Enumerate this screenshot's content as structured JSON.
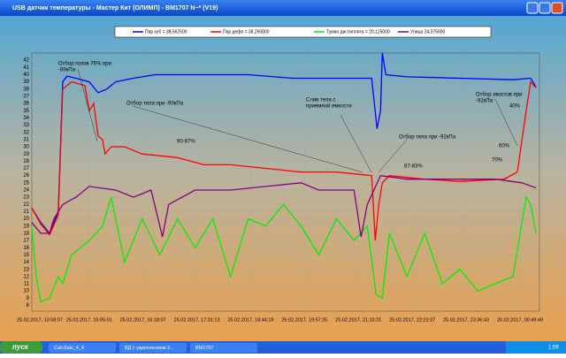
{
  "window": {
    "title": "USB датчик температуры - Мастер Кит (ОЛИМП) - BM1707 N~* (V19)"
  },
  "chart_data": {
    "type": "line",
    "xlim": [
      13.789,
      25.27
    ],
    "ylim": [
      7.2,
      43
    ],
    "xticks": [
      {
        "value": 13.969,
        "label": "25.02.2017, 13:58:07"
      },
      {
        "value": 15.084,
        "label": "25.02.2017, 15:05:01"
      },
      {
        "value": 16.302,
        "label": "25.02.2017, 16:18:07"
      },
      {
        "value": 17.52,
        "label": "25.02.2017, 17:31:13"
      },
      {
        "value": 18.739,
        "label": "25.02.2017, 18:44:19"
      },
      {
        "value": 19.957,
        "label": "25.02.2017, 19:57:25"
      },
      {
        "value": 21.175,
        "label": "25.02.2017, 21:10:31"
      },
      {
        "value": 22.394,
        "label": "25.02.2017, 22:23:37"
      },
      {
        "value": 23.612,
        "label": "25.02.2017, 23:36:43"
      },
      {
        "value": 24.83,
        "label": "26.02.2017, 00:49:49"
      }
    ],
    "yticks": [
      8,
      9,
      10,
      11,
      12,
      13,
      14,
      15,
      16,
      17,
      18,
      19,
      20,
      21,
      22,
      23,
      24,
      25,
      26,
      27,
      28,
      29,
      30,
      31,
      32,
      33,
      34,
      35,
      36,
      37,
      38,
      39,
      40,
      41,
      42
    ],
    "grid": true,
    "series": [
      {
        "name": "Пар куб = 38,562500",
        "color": "#0000ff",
        "x": [
          13.789,
          13.989,
          14.189,
          14.388,
          14.488,
          14.588,
          14.788,
          15.087,
          15.287,
          15.486,
          15.686,
          16.085,
          16.584,
          17.483,
          18.681,
          19.679,
          20.677,
          21.476,
          21.596,
          21.676,
          21.715,
          21.795,
          22.274,
          23.472,
          24.67,
          25.07,
          25.189
        ],
        "values": [
          21.5,
          19.5,
          18,
          21,
          39,
          39.8,
          39.5,
          39,
          37.5,
          38,
          39,
          39.5,
          40,
          40,
          40,
          39.5,
          39.5,
          39.5,
          32.5,
          35,
          43,
          40,
          39.7,
          39.5,
          39.3,
          39.5,
          38.3
        ]
      },
      {
        "name": "Пар дефл = 38,250000",
        "color": "#ff0000",
        "x": [
          13.789,
          13.989,
          14.189,
          14.388,
          14.488,
          14.688,
          14.987,
          15.087,
          15.187,
          15.287,
          15.387,
          15.446,
          15.586,
          15.886,
          16.285,
          17.084,
          17.682,
          18.281,
          19.08,
          19.879,
          20.677,
          21.476,
          21.556,
          21.636,
          21.715,
          21.875,
          22.674,
          23.472,
          24.471,
          24.77,
          24.97,
          25.07,
          25.189
        ],
        "values": [
          21.5,
          19.3,
          17.8,
          20.5,
          38,
          39,
          38.5,
          35,
          36,
          31.5,
          31,
          29,
          30,
          30,
          29,
          28.5,
          27.5,
          27.5,
          27,
          26.5,
          26.5,
          26,
          17,
          22,
          25,
          26,
          25.5,
          25.2,
          25.5,
          26.5,
          35,
          39,
          38.2
        ]
      },
      {
        "name": "Туман дистиллята = 20,125000",
        "color": "#00ee00",
        "x": [
          13.789,
          13.889,
          13.989,
          14.189,
          14.388,
          14.488,
          14.688,
          15.087,
          15.387,
          15.586,
          15.886,
          16.285,
          16.684,
          17.084,
          17.483,
          17.882,
          18.281,
          18.681,
          19.08,
          19.479,
          19.879,
          20.278,
          20.677,
          21.076,
          21.376,
          21.576,
          21.715,
          21.875,
          22.274,
          22.674,
          23.073,
          23.472,
          23.872,
          24.271,
          24.67,
          24.97,
          25.07,
          25.189
        ],
        "values": [
          19,
          12,
          8.5,
          9,
          12,
          11,
          15,
          17,
          19,
          23,
          14,
          20,
          15,
          20,
          16,
          20,
          12,
          20,
          19,
          22,
          19,
          15,
          20,
          17,
          19,
          9.5,
          9,
          18,
          12,
          18,
          11,
          13,
          10,
          11,
          12,
          23,
          22,
          18
        ]
      },
      {
        "name": "Улица 24,375000",
        "color": "#800080",
        "x": [
          13.789,
          13.989,
          14.189,
          14.288,
          14.488,
          14.788,
          15.087,
          15.686,
          16.085,
          16.285,
          16.485,
          16.744,
          16.884,
          17.483,
          18.281,
          19.08,
          19.879,
          20.278,
          21.076,
          21.236,
          21.376,
          21.676,
          22.274,
          23.073,
          24.271,
          24.87,
          25.189
        ],
        "values": [
          19.5,
          18,
          18,
          20,
          22,
          23,
          24.5,
          24,
          23,
          23.5,
          24,
          17.5,
          22,
          24,
          24,
          24.5,
          25,
          24,
          24,
          17.5,
          22,
          26,
          25.5,
          25.5,
          25.5,
          25,
          24.3
        ]
      }
    ],
    "annotations": [
      {
        "lines": [
          "Отбор голов 76% при",
          "-89кПа"
        ]
      },
      {
        "lines": [
          "Отбор тела при -90кПа"
        ]
      },
      {
        "lines": [
          "90-87%"
        ]
      },
      {
        "lines": [
          "Слив тела с",
          "приемной емкости"
        ]
      },
      {
        "lines": [
          "Отбор тела при -92кПа"
        ]
      },
      {
        "lines": [
          "87-83%"
        ]
      },
      {
        "lines": [
          "Отбор хвостов при",
          "-92кПа"
        ]
      },
      {
        "lines": [
          "40%"
        ]
      },
      {
        "lines": [
          "60%"
        ]
      },
      {
        "lines": [
          "70%"
        ]
      }
    ]
  },
  "taskbar": {
    "start": "пуск",
    "tasks": [
      "CalcSais_4_4",
      "ВД с укреплением 2...",
      "BM1707"
    ],
    "clock": "1:59"
  }
}
